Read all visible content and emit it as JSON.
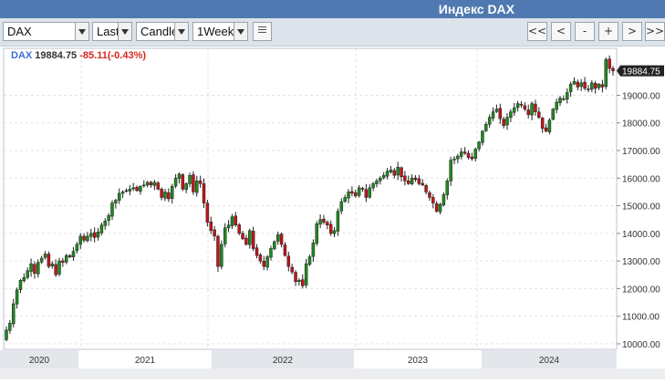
{
  "window": {
    "title": "Индекс DAX"
  },
  "toolbar": {
    "symbol": "DAX",
    "price_field": "Last",
    "chart_style": "Candle",
    "interval": "1Week",
    "nav": {
      "first": "<<",
      "prev": "<",
      "zoom_out": "-",
      "zoom_in": "+",
      "next": ">",
      "last": ">>"
    }
  },
  "legend": {
    "symbol": "DAX",
    "last": "19884.75",
    "change": "-85.11(-0.43%)"
  },
  "colors": {
    "up": "#1f8a1f",
    "down": "#c0151a",
    "last_tag": "#222222",
    "grid": "#e3e3e3"
  },
  "chart_data": {
    "type": "candlestick",
    "title": "",
    "xlabel": "",
    "ylabel": "",
    "ylim": [
      9800,
      20700
    ],
    "y_ticks": [
      "10000.00",
      "11000.00",
      "12000.00",
      "13000.00",
      "14000.00",
      "15000.00",
      "16000.00",
      "17000.00",
      "18000.00",
      "19000.00"
    ],
    "x_labels": [
      "2020",
      "2021",
      "2022",
      "2023",
      "2024"
    ],
    "last_value_label": "19884.75",
    "grid": true,
    "approx_weekly_closes": [
      10500,
      10750,
      11450,
      11950,
      12300,
      12400,
      12650,
      12900,
      12550,
      12950,
      13100,
      13250,
      12800,
      12900,
      12500,
      13000,
      12950,
      13200,
      13150,
      13350,
      13600,
      13900,
      13750,
      13900,
      14000,
      13850,
      14050,
      14300,
      14450,
      14650,
      15100,
      15200,
      15450,
      15500,
      15550,
      15600,
      15650,
      15550,
      15700,
      15750,
      15850,
      15750,
      15850,
      15600,
      15300,
      15500,
      15250,
      15700,
      16000,
      16150,
      15600,
      15800,
      16100,
      15500,
      15900,
      15800,
      15100,
      14400,
      14100,
      13900,
      12800,
      13600,
      14200,
      14300,
      14600,
      14300,
      14000,
      13800,
      13600,
      14100,
      13450,
      13200,
      13000,
      12800,
      13150,
      13450,
      13700,
      13950,
      13600,
      13200,
      12800,
      12600,
      12250,
      12300,
      12100,
      12900,
      13150,
      13650,
      14350,
      14500,
      14400,
      14300,
      14000,
      14100,
      14800,
      15150,
      15300,
      15500,
      15450,
      15350,
      15650,
      15600,
      15300,
      15650,
      15800,
      15900,
      16000,
      16100,
      16250,
      16300,
      16100,
      16400,
      16050,
      15900,
      15800,
      16000,
      15950,
      15800,
      15750,
      15500,
      15300,
      15100,
      14800,
      15050,
      15400,
      15900,
      16650,
      16700,
      16800,
      16950,
      16900,
      16750,
      16700,
      17050,
      17300,
      17700,
      17950,
      18200,
      18400,
      18500,
      18150,
      17900,
      18200,
      18400,
      18550,
      18700,
      18650,
      18500,
      18300,
      18700,
      18400,
      18200,
      17800,
      17700,
      18100,
      18500,
      18750,
      18900,
      18850,
      19100,
      19400,
      19500,
      19300,
      19450,
      19250,
      19200,
      19450,
      19250,
      19400,
      19300,
      20300,
      19970,
      19884.75
    ]
  }
}
